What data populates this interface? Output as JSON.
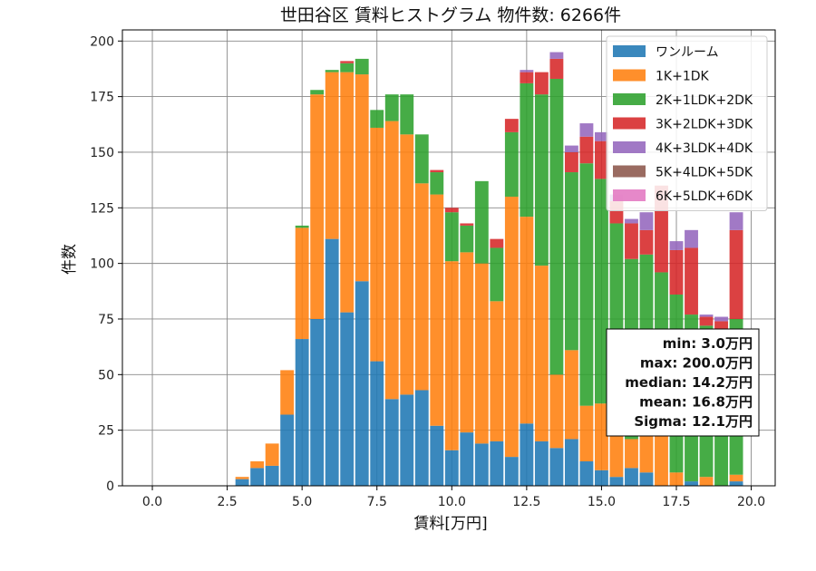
{
  "chart_data": {
    "type": "bar",
    "stacked": true,
    "title": "世田谷区 賃料ヒストグラム  物件数: 6266件",
    "xlabel": "賃料[万円]",
    "ylabel": "件数",
    "xlim": [
      -1.0,
      20.8
    ],
    "ylim": [
      0,
      205
    ],
    "xticks": [
      0.0,
      2.5,
      5.0,
      7.5,
      10.0,
      12.5,
      15.0,
      17.5,
      20.0
    ],
    "xtick_labels": [
      "0.0",
      "2.5",
      "5.0",
      "7.5",
      "10.0",
      "12.5",
      "15.0",
      "17.5",
      "20.0"
    ],
    "yticks": [
      0,
      25,
      50,
      75,
      100,
      125,
      150,
      175,
      200
    ],
    "ytick_labels": [
      "0",
      "25",
      "50",
      "75",
      "100",
      "125",
      "150",
      "175",
      "200"
    ],
    "grid": true,
    "legend_position": "upper right",
    "bin_width": 0.5,
    "x": [
      3.0,
      3.5,
      4.0,
      4.5,
      5.0,
      5.5,
      6.0,
      6.5,
      7.0,
      7.5,
      8.0,
      8.5,
      9.0,
      9.5,
      10.0,
      10.5,
      11.0,
      11.5,
      12.0,
      12.5,
      13.0,
      13.5,
      14.0,
      14.5,
      15.0,
      15.5,
      16.0,
      16.5,
      17.0,
      17.5,
      18.0,
      18.5,
      19.0,
      19.5
    ],
    "series": [
      {
        "name": "ワンルーム",
        "color": "#1f77b4",
        "values": [
          3,
          8,
          9,
          32,
          66,
          75,
          111,
          78,
          92,
          56,
          39,
          41,
          43,
          27,
          16,
          24,
          19,
          20,
          13,
          28,
          20,
          17,
          21,
          11,
          7,
          4,
          8,
          6,
          0,
          0,
          2,
          0,
          0,
          2
        ]
      },
      {
        "name": "1K+1DK",
        "color": "#ff7f0e",
        "values": [
          1,
          3,
          10,
          20,
          50,
          101,
          75,
          108,
          93,
          105,
          125,
          117,
          93,
          104,
          85,
          81,
          81,
          63,
          117,
          93,
          79,
          33,
          40,
          25,
          30,
          20,
          13,
          20,
          30,
          6,
          0,
          4,
          0,
          3
        ]
      },
      {
        "name": "2K+1LDK+2DK",
        "color": "#2ca02c",
        "values": [
          0,
          0,
          0,
          0,
          1,
          2,
          1,
          4,
          7,
          8,
          12,
          18,
          22,
          10,
          22,
          12,
          37,
          24,
          29,
          60,
          77,
          133,
          80,
          109,
          101,
          94,
          81,
          78,
          66,
          80,
          75,
          68,
          68,
          70
        ]
      },
      {
        "name": "3K+2LDK+3DK",
        "color": "#d62728",
        "values": [
          0,
          0,
          0,
          0,
          0,
          0,
          0,
          1,
          0,
          0,
          0,
          0,
          0,
          1,
          2,
          1,
          0,
          4,
          6,
          5,
          10,
          9,
          9,
          12,
          17,
          10,
          16,
          11,
          39,
          20,
          30,
          4,
          6,
          40
        ]
      },
      {
        "name": "4K+3LDK+4DK",
        "color": "#9467bd",
        "values": [
          0,
          0,
          0,
          0,
          0,
          0,
          0,
          0,
          0,
          0,
          0,
          0,
          0,
          0,
          0,
          0,
          0,
          0,
          0,
          1,
          0,
          3,
          3,
          6,
          4,
          3,
          2,
          8,
          0,
          4,
          8,
          1,
          2,
          8
        ]
      },
      {
        "name": "5K+4LDK+5DK",
        "color": "#8c564b",
        "values": [
          0,
          0,
          0,
          0,
          0,
          0,
          0,
          0,
          0,
          0,
          0,
          0,
          0,
          0,
          0,
          0,
          0,
          0,
          0,
          0,
          0,
          0,
          0,
          0,
          0,
          0,
          0,
          0,
          0,
          0,
          0,
          0,
          0,
          0
        ]
      },
      {
        "name": "6K+5LDK+6DK",
        "color": "#e377c2",
        "values": [
          0,
          0,
          0,
          0,
          0,
          0,
          0,
          0,
          0,
          0,
          0,
          0,
          0,
          0,
          0,
          0,
          0,
          0,
          0,
          0,
          0,
          0,
          0,
          0,
          0,
          0,
          0,
          0,
          0,
          0,
          0,
          0,
          0,
          0
        ]
      }
    ],
    "stats": [
      "min: 3.0万円",
      "max: 200.0万円",
      "median: 14.2万円",
      "mean: 16.8万円",
      "Sigma: 12.1万円"
    ]
  }
}
